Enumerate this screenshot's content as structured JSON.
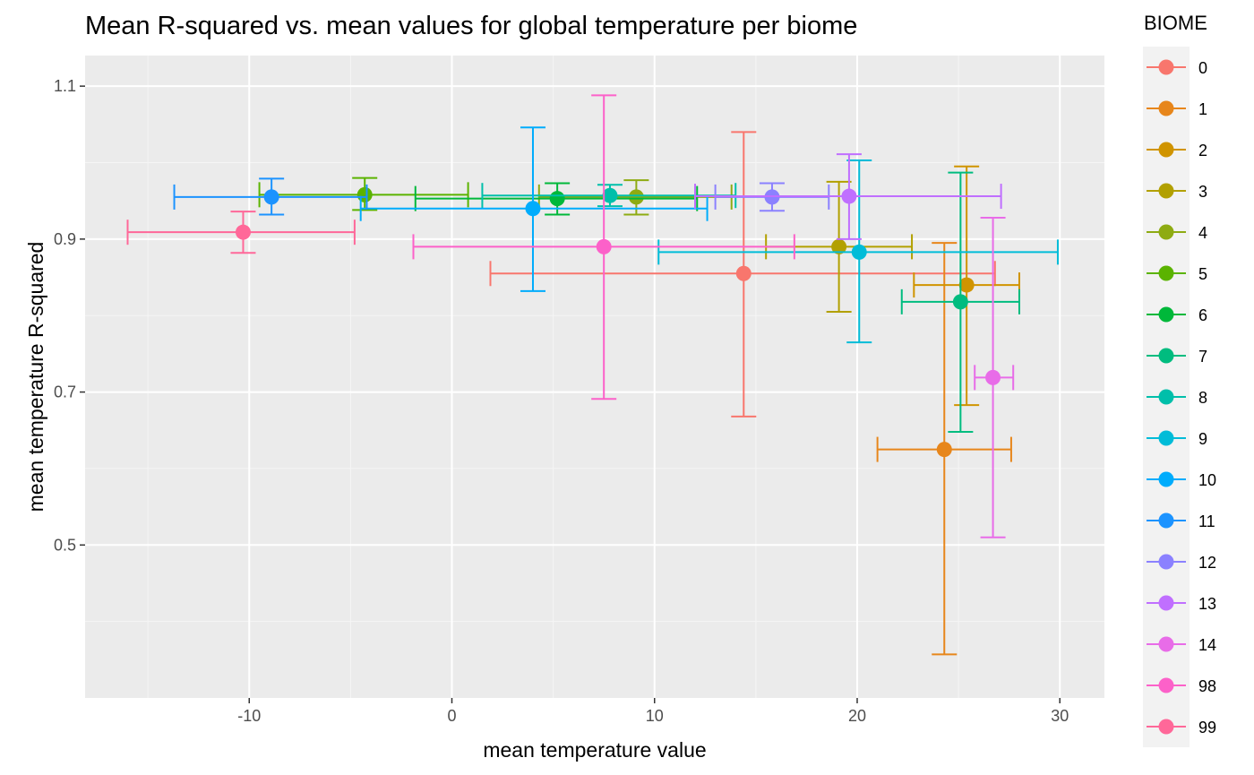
{
  "chart_data": {
    "type": "scatter",
    "title": "Mean R-squared vs. mean values for global temperature per biome",
    "xlabel": "mean temperature value",
    "ylabel": "mean temperature R-squared",
    "xlim": [
      -18.1,
      32.2
    ],
    "ylim": [
      0.3,
      1.14
    ],
    "x_ticks": [
      -10,
      0,
      10,
      20,
      30
    ],
    "y_ticks": [
      0.5,
      0.7,
      0.9,
      1.1
    ],
    "x_ticks_text": [
      "-10",
      "0",
      "10",
      "20",
      "30"
    ],
    "y_ticks_text": [
      "0.5",
      "0.7",
      "0.9",
      "1.1"
    ],
    "grid": true,
    "legend": {
      "title": "BIOME",
      "placement": "right"
    },
    "series": [
      {
        "name": "0",
        "color": "#F8766D",
        "x": 14.4,
        "y": 0.855,
        "xmin": 1.9,
        "xmax": 26.8,
        "ymin": 0.668,
        "ymax": 1.04
      },
      {
        "name": "1",
        "color": "#E7861B",
        "x": 24.3,
        "y": 0.625,
        "xmin": 21.0,
        "xmax": 27.6,
        "ymin": 0.357,
        "ymax": 0.895
      },
      {
        "name": "2",
        "color": "#D09400",
        "x": 25.4,
        "y": 0.84,
        "xmin": 22.8,
        "xmax": 28.0,
        "ymin": 0.683,
        "ymax": 0.995
      },
      {
        "name": "3",
        "color": "#B2A000",
        "x": 19.1,
        "y": 0.89,
        "xmin": 15.5,
        "xmax": 22.7,
        "ymin": 0.805,
        "ymax": 0.975
      },
      {
        "name": "4",
        "color": "#8EAB12",
        "x": 9.1,
        "y": 0.955,
        "xmin": 4.3,
        "xmax": 13.8,
        "ymin": 0.932,
        "ymax": 0.977
      },
      {
        "name": "5",
        "color": "#5BB300",
        "x": -4.3,
        "y": 0.958,
        "xmin": -9.5,
        "xmax": 0.8,
        "ymin": 0.938,
        "ymax": 0.98
      },
      {
        "name": "6",
        "color": "#00B83A",
        "x": 5.2,
        "y": 0.953,
        "xmin": -1.8,
        "xmax": 12.1,
        "ymin": 0.932,
        "ymax": 0.973
      },
      {
        "name": "7",
        "color": "#00BC7F",
        "x": 25.1,
        "y": 0.818,
        "xmin": 22.2,
        "xmax": 28.0,
        "ymin": 0.648,
        "ymax": 0.987
      },
      {
        "name": "8",
        "color": "#00BFAA",
        "x": 7.8,
        "y": 0.957,
        "xmin": 1.5,
        "xmax": 14.0,
        "ymin": 0.943,
        "ymax": 0.971
      },
      {
        "name": "9",
        "color": "#00BCD8",
        "x": 20.1,
        "y": 0.883,
        "xmin": 10.2,
        "xmax": 29.9,
        "ymin": 0.765,
        "ymax": 1.003
      },
      {
        "name": "10",
        "color": "#00ACFC",
        "x": 4.0,
        "y": 0.94,
        "xmin": -4.5,
        "xmax": 12.6,
        "ymin": 0.832,
        "ymax": 1.046
      },
      {
        "name": "11",
        "color": "#1C93FF",
        "x": -8.9,
        "y": 0.955,
        "xmin": -13.7,
        "xmax": -4.2,
        "ymin": 0.932,
        "ymax": 0.979
      },
      {
        "name": "12",
        "color": "#8B81FF",
        "x": 15.8,
        "y": 0.955,
        "xmin": 13.0,
        "xmax": 18.6,
        "ymin": 0.937,
        "ymax": 0.973
      },
      {
        "name": "13",
        "color": "#C06FFF",
        "x": 19.6,
        "y": 0.956,
        "xmin": 12.0,
        "xmax": 27.1,
        "ymin": 0.9,
        "ymax": 1.011
      },
      {
        "name": "14",
        "color": "#E86CE8",
        "x": 26.7,
        "y": 0.719,
        "xmin": 25.8,
        "xmax": 27.7,
        "ymin": 0.51,
        "ymax": 0.928
      },
      {
        "name": "98",
        "color": "#FC61C9",
        "x": 7.5,
        "y": 0.89,
        "xmin": -1.9,
        "xmax": 16.9,
        "ymin": 0.691,
        "ymax": 1.088
      },
      {
        "name": "99",
        "color": "#FF6899",
        "x": -10.3,
        "y": 0.909,
        "xmin": -16.0,
        "xmax": -4.8,
        "ymin": 0.882,
        "ymax": 0.936
      }
    ]
  }
}
